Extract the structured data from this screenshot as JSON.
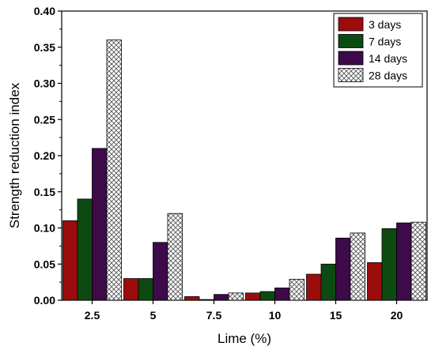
{
  "chart_data": {
    "type": "bar",
    "xlabel": "Lime (%)",
    "ylabel": "Strength reduction index",
    "categories": [
      "2.5",
      "5",
      "7.5",
      "10",
      "15",
      "20"
    ],
    "ylim": [
      0,
      0.4
    ],
    "yticks": [
      "0.00",
      "0.05",
      "0.10",
      "0.15",
      "0.20",
      "0.25",
      "0.30",
      "0.35",
      "0.40"
    ],
    "legend_position": "top-right",
    "series": [
      {
        "name": "3 days",
        "color": "#9b0d0d",
        "pattern": "solid",
        "values": [
          0.11,
          0.03,
          0.005,
          0.01,
          0.036,
          0.052
        ]
      },
      {
        "name": "7 days",
        "color": "#0d4a12",
        "pattern": "solid",
        "values": [
          0.14,
          0.03,
          0.001,
          0.012,
          0.05,
          0.099
        ]
      },
      {
        "name": "14 days",
        "color": "#3d0a4a",
        "pattern": "solid",
        "values": [
          0.21,
          0.08,
          0.008,
          0.017,
          0.086,
          0.107
        ]
      },
      {
        "name": "28 days",
        "color": "#ffffff",
        "pattern": "crosshatch",
        "values": [
          0.36,
          0.12,
          0.01,
          0.029,
          0.093,
          0.108
        ]
      }
    ]
  }
}
